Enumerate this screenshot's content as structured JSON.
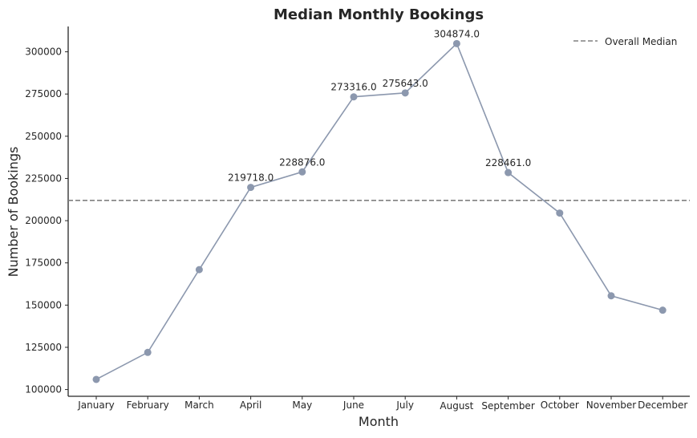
{
  "chart_data": {
    "type": "line",
    "title": "Median Monthly Bookings",
    "xlabel": "Month",
    "ylabel": "Number of Bookings",
    "categories": [
      "January",
      "February",
      "March",
      "April",
      "May",
      "June",
      "July",
      "August",
      "September",
      "October",
      "November",
      "December"
    ],
    "values": [
      106000,
      122000,
      171000,
      219718.0,
      228876.0,
      273316.0,
      275643.0,
      304874.0,
      228461.0,
      204500,
      155500,
      147000
    ],
    "data_labels": [
      {
        "index": 3,
        "text": "219718.0"
      },
      {
        "index": 4,
        "text": "228876.0"
      },
      {
        "index": 5,
        "text": "273316.0"
      },
      {
        "index": 6,
        "text": "275643.0"
      },
      {
        "index": 7,
        "text": "304874.0"
      },
      {
        "index": 8,
        "text": "228461.0"
      }
    ],
    "reference_line": {
      "label": "Overall Median",
      "value": 212000,
      "style": "dashed",
      "color": "#808080"
    },
    "ylim": [
      96000,
      315000
    ],
    "yticks": [
      100000,
      125000,
      150000,
      175000,
      200000,
      225000,
      250000,
      275000,
      300000
    ],
    "grid": false,
    "legend": {
      "position": "top-right",
      "entries": [
        "Overall Median"
      ]
    },
    "colors": {
      "line": "#8c98ae",
      "marker": "#8c98ae"
    }
  }
}
